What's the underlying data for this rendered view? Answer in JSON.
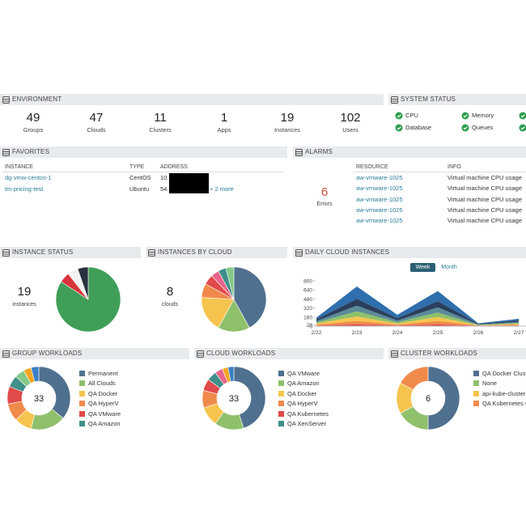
{
  "environment": {
    "title": "ENVIRONMENT",
    "stats": [
      {
        "value": 49,
        "label": "Groups"
      },
      {
        "value": 47,
        "label": "Clouds"
      },
      {
        "value": 11,
        "label": "Clusters"
      },
      {
        "value": 1,
        "label": "Apps"
      },
      {
        "value": 19,
        "label": "Instances"
      },
      {
        "value": 102,
        "label": "Users"
      }
    ]
  },
  "system_status": {
    "title": "SYSTEM STATUS",
    "items": [
      "CPU",
      "Memory",
      "Database",
      "Queues"
    ]
  },
  "favorites": {
    "title": "FAVORITES",
    "columns": [
      "INSTANCE",
      "TYPE",
      "ADDRESS"
    ],
    "rows": [
      [
        "dg-vmw-centos-1",
        "CentOS",
        "10."
      ],
      [
        "tm-pricing-test",
        "Ubuntu",
        "54."
      ]
    ],
    "more": "+ 2 more"
  },
  "alarms": {
    "title": "ALARMS",
    "count": 6,
    "count_label": "Errors",
    "columns": [
      "RESOURCE",
      "INFO"
    ],
    "rows": [
      [
        "aw-vmware-1025",
        "Virtual machine CPU usage"
      ],
      [
        "aw-vmware-1025",
        "Virtual machine CPU usage"
      ],
      [
        "aw-vmware-1025",
        "Virtual machine CPU usage"
      ],
      [
        "aw-vmware-1025",
        "Virtual machine CPU usage"
      ],
      [
        "aw-vmware-1025",
        "Virtual machine CPU usage"
      ]
    ]
  },
  "chart_data": [
    {
      "type": "pie",
      "title": "INSTANCE STATUS",
      "center_value": 19,
      "center_label": "instances",
      "values": [
        16,
        1,
        1,
        1
      ],
      "colors": [
        "#3f9e57",
        "#d9343b",
        "#f2f2f2",
        "#27313f"
      ]
    },
    {
      "type": "pie",
      "title": "INSTANCES BY CLOUD",
      "center_value": 8,
      "center_label": "clouds",
      "values": [
        42,
        16,
        18,
        7,
        5,
        4,
        4,
        4
      ],
      "colors": [
        "#50708f",
        "#8fc06b",
        "#f6c44e",
        "#f08a4b",
        "#e04a4a",
        "#e8648b",
        "#3f8f8a",
        "#84c98a"
      ]
    },
    {
      "type": "area",
      "title": "DAILY CLOUD INSTANCES",
      "buttons": [
        "Week",
        "Month"
      ],
      "categories": [
        "2/22",
        "2/23",
        "2/24",
        "2/25",
        "2/26",
        "2/27"
      ],
      "ylim": [
        0,
        800
      ],
      "yticks": [
        0,
        20,
        160,
        320,
        480,
        640,
        800
      ],
      "stacked": true,
      "series": [
        {
          "color": "#e04a4a",
          "values": [
            10,
            30,
            10,
            30,
            5,
            10
          ]
        },
        {
          "color": "#f08a4b",
          "values": [
            15,
            60,
            15,
            60,
            5,
            15
          ]
        },
        {
          "color": "#f6c44e",
          "values": [
            20,
            80,
            20,
            70,
            5,
            15
          ]
        },
        {
          "color": "#8fc06b",
          "values": [
            20,
            90,
            25,
            80,
            5,
            15
          ]
        },
        {
          "color": "#5b8a99",
          "values": [
            25,
            100,
            30,
            90,
            10,
            20
          ]
        },
        {
          "color": "#2b3f5c",
          "values": [
            30,
            120,
            40,
            110,
            10,
            25
          ]
        },
        {
          "color": "#2f6fad",
          "values": [
            30,
            220,
            60,
            180,
            10,
            30
          ]
        }
      ]
    },
    {
      "type": "donut",
      "title": "GROUP WORKLOADS",
      "center_value": 33,
      "categories": [
        "Permanent",
        "All Clouds",
        "QA Docker",
        "QA HyperV",
        "QA VMware",
        "QA Amazon",
        null,
        null,
        null
      ],
      "values": [
        36,
        18,
        9,
        9,
        9,
        6,
        5,
        4,
        4
      ],
      "colors": [
        "#50708f",
        "#8fc06b",
        "#f6c44e",
        "#f08a4b",
        "#e04a4a",
        "#3f8f8a",
        "#84c98a",
        "#f5a623",
        "#3b7fc4"
      ]
    },
    {
      "type": "donut",
      "title": "CLOUD WORKLOADS",
      "center_value": 33,
      "categories": [
        "QA VMware",
        "QA Amazon",
        "QA Docker",
        "QA HyperV",
        "QA Kubernetes",
        "QA XenServer",
        null,
        null,
        null
      ],
      "values": [
        45,
        15,
        10,
        9,
        6,
        5,
        4,
        3,
        3
      ],
      "colors": [
        "#50708f",
        "#8fc06b",
        "#f6c44e",
        "#f08a4b",
        "#e04a4a",
        "#3f8f8a",
        "#e8648b",
        "#f5a623",
        "#3b7fc4"
      ]
    },
    {
      "type": "donut",
      "title": "CLUSTER WORKLOADS",
      "center_value": 6,
      "categories": [
        "QA Docker Cluster",
        "None",
        "api-kube-cluster",
        "QA Kubernetes C"
      ],
      "values": [
        50,
        17,
        16,
        17
      ],
      "colors": [
        "#50708f",
        "#8fc06b",
        "#f6c44e",
        "#f08a4b"
      ]
    }
  ]
}
